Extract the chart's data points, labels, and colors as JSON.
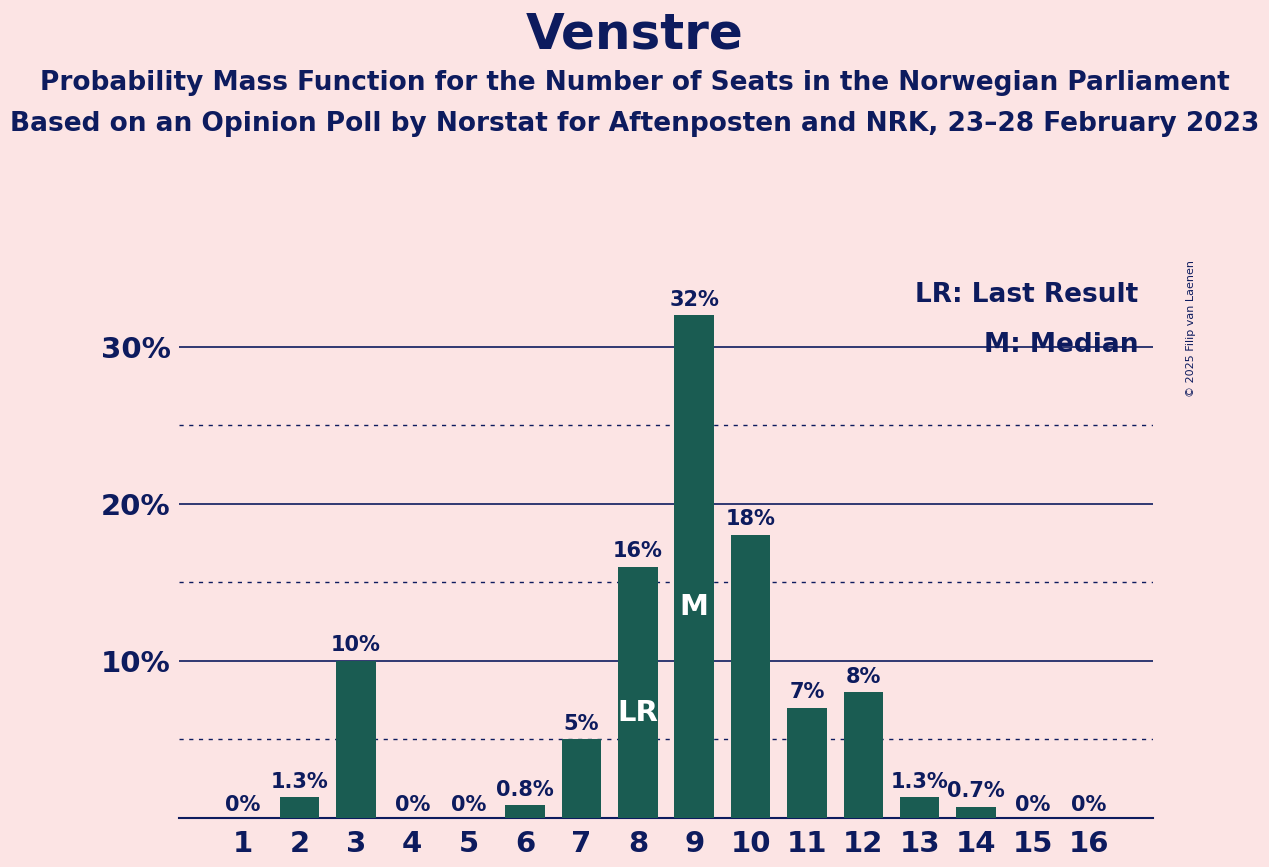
{
  "title": "Venstre",
  "subtitle1": "Probability Mass Function for the Number of Seats in the Norwegian Parliament",
  "subtitle2": "Based on an Opinion Poll by Norstat for Aftenposten and NRK, 23–28 February 2023",
  "copyright": "© 2025 Filip van Laenen",
  "legend_lr": "LR: Last Result",
  "legend_m": "M: Median",
  "categories": [
    1,
    2,
    3,
    4,
    5,
    6,
    7,
    8,
    9,
    10,
    11,
    12,
    13,
    14,
    15,
    16
  ],
  "values": [
    0,
    1.3,
    10,
    0,
    0,
    0.8,
    5,
    16,
    32,
    18,
    7,
    8,
    1.3,
    0.7,
    0,
    0
  ],
  "bar_labels": [
    "0%",
    "1.3%",
    "10%",
    "0%",
    "0%",
    "0.8%",
    "5%",
    "16%",
    "32%",
    "18%",
    "7%",
    "8%",
    "1.3%",
    "0.7%",
    "0%",
    "0%"
  ],
  "bar_color": "#1a5c52",
  "background_color": "#fce4e4",
  "text_color": "#0d1b5e",
  "grid_color": "#0d1b5e",
  "lr_seat": 8,
  "median_seat": 9,
  "ylim": [
    0,
    35
  ],
  "solid_gridlines": [
    10,
    20,
    30
  ],
  "dotted_gridlines": [
    5,
    15,
    25
  ],
  "bar_label_fontsize": 15,
  "title_fontsize": 36,
  "subtitle_fontsize": 19,
  "axis_tick_fontsize": 21,
  "legend_fontsize": 19,
  "lr_label_color": "#ffffff",
  "m_label_color": "#ffffff",
  "copyright_fontsize": 8
}
